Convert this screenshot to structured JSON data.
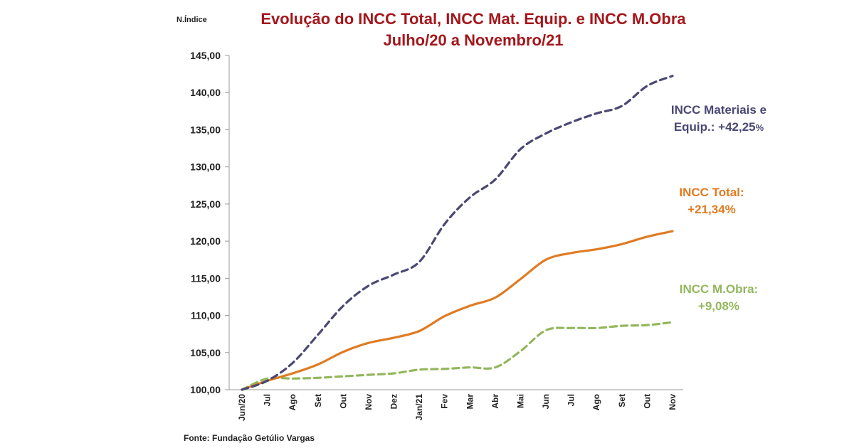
{
  "chart_data": {
    "type": "line",
    "title_line1": "Evolução do INCC Total, INCC Mat. Equip.  e INCC M.Obra",
    "title_line2": "Julho/20  a Novembro/21",
    "ylabel": "N.Índice",
    "ylim": [
      100,
      145
    ],
    "yticks": [
      "100,00",
      "105,00",
      "110,00",
      "115,00",
      "120,00",
      "125,00",
      "130,00",
      "135,00",
      "140,00",
      "145,00"
    ],
    "categories": [
      "Jun/20",
      "Jul",
      "Ago",
      "Set",
      "Out",
      "Nov",
      "Dez",
      "Jan/21",
      "Fev",
      "Mar",
      "Abr",
      "Mai",
      "Jun",
      "Jul",
      "Ago",
      "Set",
      "Out",
      "Nov"
    ],
    "series": [
      {
        "key": "mat",
        "color": "#4a4873",
        "dash": true,
        "values": [
          100.0,
          101.2,
          103.6,
          107.4,
          111.3,
          114.0,
          115.5,
          117.2,
          122.3,
          125.9,
          128.3,
          132.4,
          134.5,
          136.0,
          137.2,
          138.2,
          140.9,
          142.25
        ]
      },
      {
        "key": "total",
        "color": "#e07b22",
        "dash": false,
        "values": [
          100.0,
          101.2,
          102.2,
          103.4,
          105.1,
          106.3,
          107.0,
          107.9,
          109.9,
          111.3,
          112.4,
          114.9,
          117.5,
          118.4,
          118.9,
          119.6,
          120.6,
          121.34
        ]
      },
      {
        "key": "mobra",
        "color": "#92b75c",
        "dash": true,
        "values": [
          100.0,
          101.5,
          101.5,
          101.6,
          101.8,
          102.0,
          102.2,
          102.7,
          102.8,
          103.0,
          103.0,
          105.2,
          108.0,
          108.3,
          108.3,
          108.6,
          108.7,
          109.08
        ]
      }
    ],
    "annotations": [
      {
        "key": "mat",
        "color": "#4a4873",
        "line1": "INCC Materiais e",
        "line2_main": "Equip.:  +42,25",
        "line2_small": "%"
      },
      {
        "key": "total",
        "color": "#e07b22",
        "line1": "INCC Total:",
        "line2_main": "+21,34%",
        "line2_small": ""
      },
      {
        "key": "mobra",
        "color": "#92b75c",
        "line1": "INCC M.Obra:",
        "line2_main": "+9,08%",
        "line2_small": ""
      }
    ],
    "source": "Fonte: Fundação Getúlio Vargas"
  }
}
